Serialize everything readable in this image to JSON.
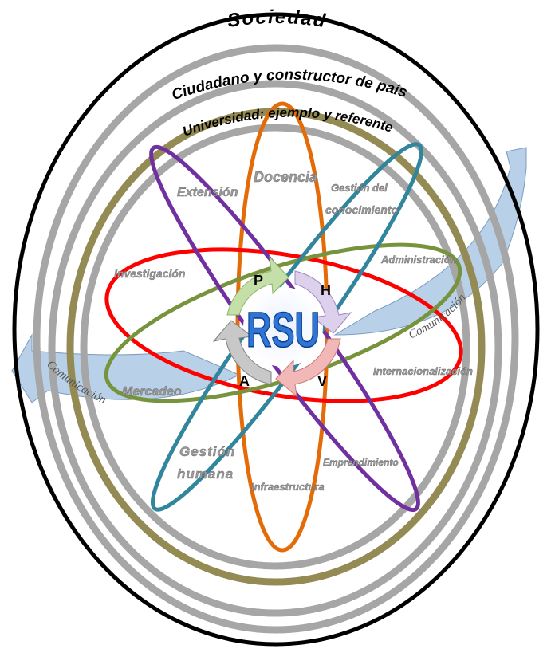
{
  "outer_rings": [
    "Sociedad",
    "Ciudadano y constructor de país",
    "Universidad: ejemplo y referente"
  ],
  "areas": {
    "docencia": "Docencia",
    "extension": "Extensión",
    "gestion_conocimiento": [
      "Gestión del",
      "conocimiento"
    ],
    "administracion": "Administración",
    "investigacion": "Investigación",
    "internacionalizacion": "Internacionalización",
    "mercadeo": "Mercadeo",
    "gestion_humana": [
      "Gestión",
      "humana"
    ],
    "emprendimiento": "Emprendimiento",
    "infraestructura": "Infraestructura"
  },
  "center": {
    "title": "RSU",
    "cycle": [
      "P",
      "H",
      "V",
      "A"
    ]
  },
  "communication": [
    "Comunicación",
    "Comunicación"
  ]
}
